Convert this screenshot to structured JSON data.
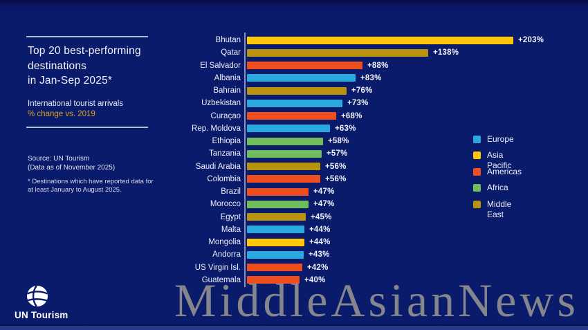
{
  "panel": {
    "title": "Top 20 best-performing\ndestinations\nin Jan-Sep 2025*",
    "subtitle": "International tourist arrivals",
    "metric_note": "% change vs. 2019",
    "source": "Source: UN Tourism\n(Data as of November 2025)",
    "footnote": "* Destinations which have reported data for\nat least January to August 2025."
  },
  "branding": {
    "logo_label": "UN Tourism"
  },
  "watermark": "MiddleAsianNews",
  "colors": {
    "background": "#0B1B6C",
    "panel_text": "#F2F4F9",
    "metric_gold": "#D8A427",
    "watermark_gray": "#8E8E90",
    "europe": "#2AA9E1",
    "asia_pacific": "#FFC60A",
    "americas": "#EF4E1E",
    "africa": "#70BE5B",
    "middle_east": "#B7930E"
  },
  "chart_data": {
    "type": "bar",
    "orientation": "horizontal",
    "title": "Top 20 best-performing destinations in Jan-Sep 2025*",
    "subtitle": "International tourist arrivals, % change vs. 2019",
    "xlim": [
      0,
      215
    ],
    "grid": false,
    "legend_position": "right",
    "legend": [
      {
        "region": "europe",
        "label": "Europe",
        "color": "#2AA9E1"
      },
      {
        "region": "asia_pacific",
        "label": "Asia Pacific",
        "color": "#FFC60A"
      },
      {
        "region": "americas",
        "label": "Americas",
        "color": "#EF4E1E"
      },
      {
        "region": "africa",
        "label": "Africa",
        "color": "#70BE5B"
      },
      {
        "region": "middle_east",
        "label": "Middle East",
        "color": "#B7930E"
      }
    ],
    "bars": [
      {
        "label": "Bhutan",
        "value": 203,
        "display": "+203%",
        "region": "asia_pacific"
      },
      {
        "label": "Qatar",
        "value": 138,
        "display": "+138%",
        "region": "middle_east"
      },
      {
        "label": "El Salvador",
        "value": 88,
        "display": "+88%",
        "region": "americas"
      },
      {
        "label": "Albania",
        "value": 83,
        "display": "+83%",
        "region": "europe"
      },
      {
        "label": "Bahrain",
        "value": 76,
        "display": "+76%",
        "region": "middle_east"
      },
      {
        "label": "Uzbekistan",
        "value": 73,
        "display": "+73%",
        "region": "europe"
      },
      {
        "label": "Curaçao",
        "value": 68,
        "display": "+68%",
        "region": "americas"
      },
      {
        "label": "Rep. Moldova",
        "value": 63,
        "display": "+63%",
        "region": "europe"
      },
      {
        "label": "Ethiopia",
        "value": 58,
        "display": "+58%",
        "region": "africa"
      },
      {
        "label": "Tanzania",
        "value": 57,
        "display": "+57%",
        "region": "africa"
      },
      {
        "label": "Saudi Arabia",
        "value": 56,
        "display": "+56%",
        "region": "middle_east"
      },
      {
        "label": "Colombia",
        "value": 56,
        "display": "+56%",
        "region": "americas"
      },
      {
        "label": "Brazil",
        "value": 47,
        "display": "+47%",
        "region": "americas"
      },
      {
        "label": "Morocco",
        "value": 47,
        "display": "+47%",
        "region": "africa"
      },
      {
        "label": "Egypt",
        "value": 45,
        "display": "+45%",
        "region": "middle_east"
      },
      {
        "label": "Malta",
        "value": 44,
        "display": "+44%",
        "region": "europe"
      },
      {
        "label": "Mongolia",
        "value": 44,
        "display": "+44%",
        "region": "asia_pacific"
      },
      {
        "label": "Andorra",
        "value": 43,
        "display": "+43%",
        "region": "europe"
      },
      {
        "label": "US Virgin Isl.",
        "value": 42,
        "display": "+42%",
        "region": "americas"
      },
      {
        "label": "Guatemala",
        "value": 40,
        "display": "+40%",
        "region": "americas"
      }
    ]
  }
}
